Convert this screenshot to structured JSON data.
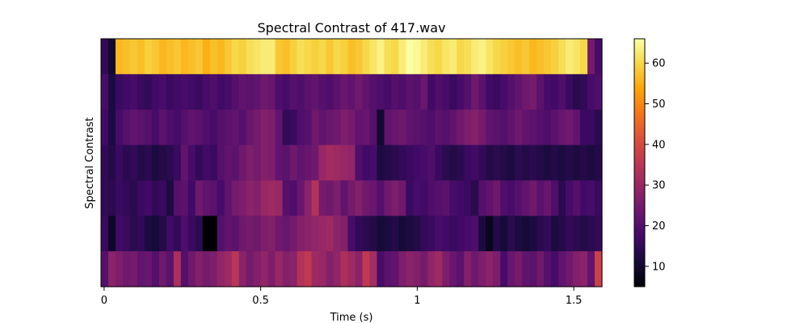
{
  "chart_data": {
    "type": "heatmap",
    "title": "Spectral Contrast of 417.wav",
    "xlabel": "Time (s)",
    "ylabel": "Spectral Contrast",
    "x_ticks": [
      0,
      0.5,
      1,
      1.5
    ],
    "x_tick_labels": [
      "0",
      "0.5",
      "1",
      "1.5"
    ],
    "xlim": [
      -0.01,
      1.59
    ],
    "n_bands": 7,
    "n_frames": 69,
    "colormap": "inferno",
    "colorbar": {
      "min": 5,
      "max": 66,
      "ticks": [
        10,
        20,
        30,
        40,
        50,
        60
      ],
      "tick_labels": [
        "10",
        "20",
        "30",
        "40",
        "50",
        "60"
      ]
    },
    "rows_top_to_bottom": [
      [
        15,
        10,
        56,
        57,
        58,
        57,
        59,
        58,
        56,
        57,
        58,
        56,
        57,
        58,
        55,
        57,
        56,
        58,
        60,
        59,
        61,
        62,
        63,
        63,
        58,
        57,
        59,
        61,
        60,
        59,
        60,
        58,
        60,
        59,
        57,
        58,
        60,
        62,
        64,
        61,
        60,
        63,
        66,
        65,
        63,
        61,
        60,
        62,
        63,
        60,
        61,
        63,
        64,
        62,
        60,
        59,
        58,
        57,
        58,
        56,
        57,
        58,
        59,
        61,
        63,
        62,
        60,
        25,
        18
      ],
      [
        18,
        12,
        16,
        17,
        18,
        16,
        15,
        17,
        18,
        16,
        17,
        18,
        17,
        16,
        18,
        19,
        17,
        18,
        20,
        22,
        21,
        22,
        24,
        23,
        19,
        18,
        20,
        19,
        21,
        22,
        20,
        19,
        21,
        23,
        22,
        24,
        22,
        20,
        19,
        18,
        20,
        19,
        21,
        20,
        23,
        17,
        19,
        18,
        16,
        18,
        20,
        24,
        21,
        17,
        16,
        18,
        20,
        22,
        24,
        25,
        21,
        18,
        17,
        19,
        16,
        14,
        15,
        18,
        19
      ],
      [
        17,
        12,
        18,
        20,
        22,
        21,
        20,
        18,
        21,
        19,
        18,
        20,
        22,
        21,
        19,
        18,
        20,
        21,
        22,
        20,
        23,
        25,
        27,
        26,
        22,
        15,
        16,
        19,
        20,
        24,
        22,
        23,
        24,
        26,
        25,
        22,
        23,
        20,
        10,
        22,
        23,
        24,
        22,
        21,
        20,
        19,
        21,
        20,
        22,
        24,
        26,
        27,
        25,
        22,
        21,
        20,
        22,
        24,
        22,
        21,
        20,
        19,
        21,
        23,
        24,
        22,
        16,
        16,
        14
      ],
      [
        15,
        13,
        16,
        14,
        15,
        13,
        14,
        12,
        13,
        14,
        16,
        22,
        18,
        15,
        17,
        16,
        20,
        22,
        21,
        24,
        26,
        25,
        27,
        26,
        22,
        21,
        24,
        22,
        23,
        24,
        30,
        32,
        31,
        30,
        29,
        19,
        17,
        18,
        12,
        13,
        14,
        15,
        16,
        17,
        18,
        19,
        16,
        14,
        13,
        14,
        16,
        17,
        15,
        13,
        14,
        13,
        12,
        14,
        13,
        14,
        13,
        12,
        13,
        12,
        13,
        12,
        13,
        12,
        13
      ],
      [
        15,
        14,
        16,
        15,
        14,
        16,
        17,
        15,
        16,
        12,
        20,
        21,
        17,
        24,
        22,
        21,
        18,
        22,
        25,
        26,
        28,
        27,
        30,
        31,
        30,
        20,
        19,
        23,
        28,
        34,
        25,
        24,
        26,
        22,
        25,
        27,
        24,
        23,
        20,
        24,
        26,
        24,
        16,
        18,
        17,
        19,
        20,
        21,
        18,
        17,
        16,
        14,
        20,
        22,
        24,
        19,
        18,
        20,
        22,
        24,
        21,
        23,
        19,
        14,
        18,
        20,
        17,
        18,
        16
      ],
      [
        16,
        9,
        17,
        16,
        14,
        15,
        12,
        11,
        13,
        17,
        15,
        19,
        16,
        14,
        5,
        5,
        20,
        22,
        21,
        24,
        25,
        24,
        26,
        27,
        24,
        23,
        25,
        27,
        28,
        29,
        30,
        31,
        28,
        27,
        18,
        15,
        14,
        13,
        11,
        12,
        13,
        11,
        12,
        13,
        15,
        16,
        18,
        17,
        16,
        17,
        18,
        19,
        12,
        8,
        13,
        11,
        14,
        12,
        11,
        12,
        14,
        15,
        12,
        13,
        15,
        14,
        13,
        14,
        15
      ],
      [
        20,
        28,
        26,
        24,
        25,
        22,
        23,
        20,
        24,
        21,
        33,
        20,
        24,
        27,
        25,
        26,
        29,
        31,
        35,
        28,
        25,
        27,
        29,
        26,
        30,
        27,
        28,
        34,
        36,
        31,
        30,
        27,
        29,
        33,
        31,
        28,
        36,
        32,
        18,
        21,
        22,
        26,
        28,
        27,
        25,
        29,
        31,
        26,
        23,
        21,
        27,
        24,
        26,
        28,
        26,
        18,
        23,
        25,
        22,
        21,
        24,
        20,
        18,
        22,
        24,
        27,
        28,
        22,
        38
      ]
    ]
  }
}
